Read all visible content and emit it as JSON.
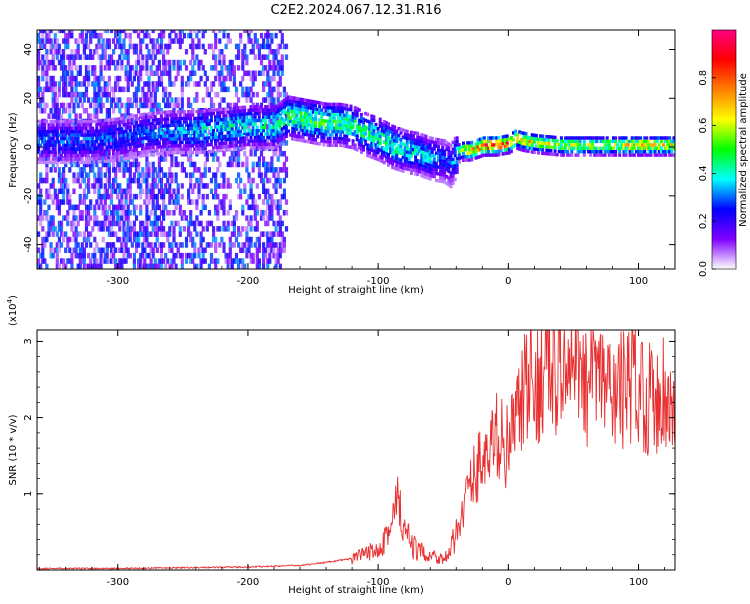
{
  "title": "C2E2.2024.067.12.31.R16",
  "chart_data": [
    {
      "type": "heatmap",
      "xlabel": "Height of straight line (km)",
      "ylabel": "Frequency (Hz)",
      "xlim": [
        -362,
        128
      ],
      "ylim": [
        -50,
        48
      ],
      "xticks": [
        -300,
        -200,
        -100,
        0,
        100
      ],
      "xtick_labels": [
        "-300",
        "-200",
        "-100",
        "0",
        "100"
      ],
      "yticks": [
        -40,
        -20,
        0,
        20,
        40
      ],
      "ytick_labels": [
        "-40",
        "-20",
        "0",
        "20",
        "40"
      ],
      "colorbar": {
        "label": "Normalized spectral amplitude",
        "range": [
          0,
          1
        ],
        "ticks": [
          0.0,
          0.2,
          0.4,
          0.6,
          0.8
        ],
        "tick_labels": [
          "0.0",
          "0.2",
          "0.4",
          "0.6",
          "0.8"
        ],
        "colors": [
          "#ffffff",
          "#8000ff",
          "#0000ff",
          "#00ffff",
          "#00ff00",
          "#ffff00",
          "#ff8000",
          "#ff0000",
          "#ff0080"
        ]
      },
      "ridge": {
        "x": [
          -320,
          -300,
          -280,
          -260,
          -240,
          -220,
          -200,
          -180,
          -170,
          -160,
          -150,
          -140,
          -130,
          -120,
          -110,
          -100,
          -90,
          -80,
          -70,
          -60,
          -50,
          -45,
          -40,
          -35,
          -30,
          -20,
          -10,
          0,
          5,
          10,
          20,
          40,
          60,
          80,
          100,
          128
        ],
        "freq": [
          2,
          3,
          5,
          6,
          6,
          7,
          8,
          8,
          12,
          11,
          10,
          9,
          9,
          8,
          5,
          3,
          0,
          -2,
          -3,
          -5,
          -6,
          -8,
          -3,
          -2,
          -2,
          0,
          0,
          1,
          3,
          2,
          1,
          0,
          0,
          0,
          0,
          0
        ],
        "amplitude": [
          0.3,
          0.3,
          0.3,
          0.35,
          0.38,
          0.4,
          0.42,
          0.45,
          0.48,
          0.5,
          0.5,
          0.5,
          0.5,
          0.48,
          0.45,
          0.45,
          0.45,
          0.4,
          0.4,
          0.35,
          0.3,
          0.28,
          0.45,
          0.6,
          0.7,
          0.85,
          0.85,
          0.8,
          0.75,
          0.7,
          0.65,
          0.6,
          0.6,
          0.6,
          0.7,
          0.65
        ]
      }
    },
    {
      "type": "line",
      "xlabel": "Height of straight line (km)",
      "ylabel": "SNR (10 * v/v)",
      "multiplier_label": "(x10",
      "multiplier_exp": "4",
      "multiplier_close": ")",
      "xlim": [
        -362,
        128
      ],
      "ylim": [
        0,
        3.15
      ],
      "xticks": [
        -300,
        -200,
        -100,
        0,
        100
      ],
      "xtick_labels": [
        "-300",
        "-200",
        "-100",
        "0",
        "100"
      ],
      "yticks": [
        1,
        2,
        3
      ],
      "ytick_labels": [
        "1",
        "2",
        "3"
      ],
      "line_color": "#e83030",
      "series": [
        {
          "name": "SNR",
          "x": [
            -362,
            -300,
            -250,
            -200,
            -180,
            -160,
            -140,
            -120,
            -110,
            -100,
            -95,
            -90,
            -85,
            -80,
            -75,
            -70,
            -60,
            -50,
            -45,
            -40,
            -35,
            -30,
            -25,
            -20,
            -15,
            -10,
            -5,
            0,
            5,
            10,
            15,
            20,
            25,
            30,
            35,
            40,
            45,
            50,
            55,
            60,
            70,
            80,
            90,
            100,
            110,
            120,
            128
          ],
          "y": [
            0.02,
            0.02,
            0.03,
            0.04,
            0.05,
            0.06,
            0.1,
            0.15,
            0.2,
            0.3,
            0.45,
            0.55,
            0.9,
            0.5,
            0.35,
            0.25,
            0.2,
            0.15,
            0.2,
            0.5,
            0.8,
            1.1,
            1.3,
            1.5,
            1.4,
            1.8,
            1.7,
            1.6,
            1.9,
            2.2,
            2.4,
            2.3,
            2.6,
            2.7,
            2.5,
            2.9,
            2.4,
            2.6,
            3.05,
            2.4,
            2.5,
            2.3,
            2.4,
            2.5,
            2.2,
            2.4,
            1.9
          ]
        }
      ]
    }
  ]
}
